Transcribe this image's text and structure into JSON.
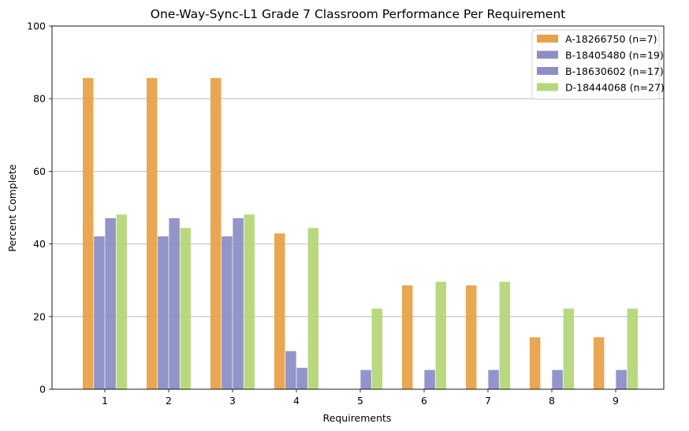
{
  "chart_data": {
    "type": "bar",
    "title": "One-Way-Sync-L1 Grade 7 Classroom Performance Per Requirement",
    "xlabel": "Requirements",
    "ylabel": "Percent Complete",
    "ylim": [
      0,
      100
    ],
    "yticks": [
      "0",
      "20",
      "40",
      "60",
      "80",
      "100"
    ],
    "categories": [
      "1",
      "2",
      "3",
      "4",
      "5",
      "6",
      "7",
      "8",
      "9"
    ],
    "grid": "horizontal",
    "legend_position": "top-right",
    "series": [
      {
        "name": "A-18266750 (n=7)",
        "color": "#E8A24A",
        "values": [
          85.7,
          85.7,
          85.7,
          42.9,
          0,
          28.6,
          28.6,
          14.3,
          14.3
        ]
      },
      {
        "name": "B-18405480 (n=19)",
        "color": "#8B8FC6",
        "values": [
          42.1,
          42.1,
          42.1,
          10.5,
          0,
          0,
          0,
          0,
          0
        ]
      },
      {
        "name": "B-18630602 (n=17)",
        "color": "#8B8FC6",
        "values": [
          47.1,
          47.1,
          47.1,
          5.9,
          5.3,
          5.3,
          5.3,
          5.3,
          5.3
        ]
      },
      {
        "name": "D-18444068 (n=27)",
        "color": "#B5D77A",
        "values": [
          48.1,
          44.4,
          48.1,
          44.4,
          22.2,
          29.6,
          29.6,
          22.2,
          22.2
        ]
      }
    ]
  }
}
